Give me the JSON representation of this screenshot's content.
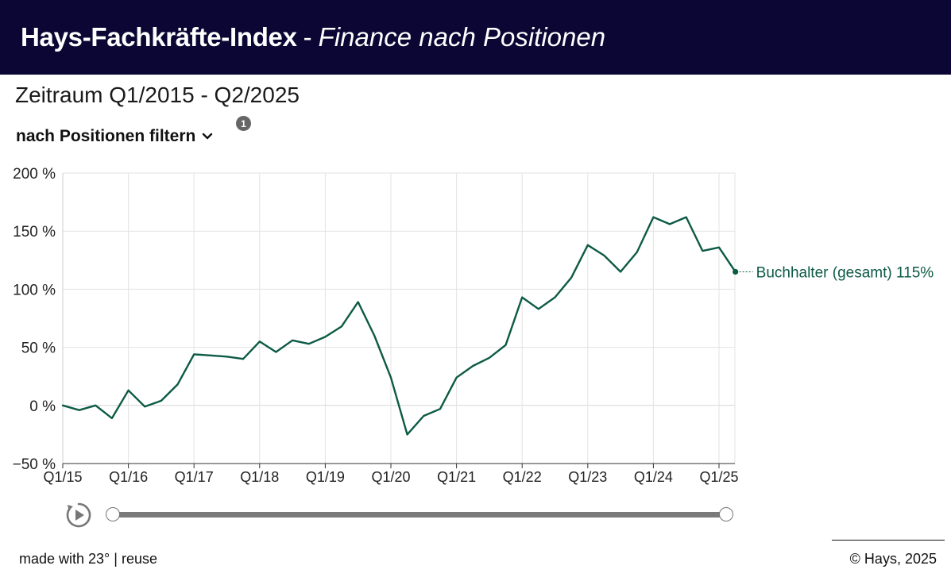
{
  "header": {
    "title_bold": "Hays-Fachkräfte-Index",
    "separator": "-",
    "title_italic": "Finance nach Positionen",
    "bg_color": "#0b0633"
  },
  "period_label": "Zeitraum Q1/2015 - Q2/2025",
  "filter": {
    "label": "nach Positionen filtern",
    "chevron_icon": "chevron-down-icon",
    "info_badge": "1"
  },
  "chart_data": {
    "type": "line",
    "title": "",
    "xlabel": "",
    "ylabel": "",
    "ylim": [
      -50,
      200
    ],
    "y_ticks": [
      "−50 %",
      "0 %",
      "50 %",
      "100 %",
      "150 %",
      "200 %"
    ],
    "y_tick_values": [
      -50,
      0,
      50,
      100,
      150,
      200
    ],
    "x_ticks": [
      "Q1/15",
      "Q1/16",
      "Q1/17",
      "Q1/18",
      "Q1/19",
      "Q1/20",
      "Q1/21",
      "Q1/22",
      "Q1/23",
      "Q1/24",
      "Q1/25"
    ],
    "grid": true,
    "line_color": "#0d5a45",
    "series": [
      {
        "name": "Buchhalter (gesamt)",
        "end_label": "Buchhalter (gesamt) 115%",
        "x": [
          "Q1/15",
          "Q2/15",
          "Q3/15",
          "Q4/15",
          "Q1/16",
          "Q2/16",
          "Q3/16",
          "Q4/16",
          "Q1/17",
          "Q2/17",
          "Q3/17",
          "Q4/17",
          "Q1/18",
          "Q2/18",
          "Q3/18",
          "Q4/18",
          "Q1/19",
          "Q2/19",
          "Q3/19",
          "Q4/19",
          "Q1/20",
          "Q2/20",
          "Q3/20",
          "Q4/20",
          "Q1/21",
          "Q2/21",
          "Q3/21",
          "Q4/21",
          "Q1/22",
          "Q2/22",
          "Q3/22",
          "Q4/22",
          "Q1/23",
          "Q2/23",
          "Q3/23",
          "Q4/23",
          "Q1/24",
          "Q2/24",
          "Q3/24",
          "Q4/24",
          "Q1/25",
          "Q2/25"
        ],
        "values": [
          0,
          -4,
          0,
          -11,
          13,
          -1,
          4,
          18,
          44,
          43,
          42,
          40,
          55,
          46,
          56,
          53,
          59,
          68,
          89,
          60,
          24,
          -25,
          -9,
          -3,
          24,
          34,
          41,
          52,
          93,
          83,
          93,
          110,
          138,
          129,
          115,
          132,
          162,
          156,
          162,
          133,
          136,
          115
        ]
      }
    ]
  },
  "player": {
    "play_icon": "replay-play-icon"
  },
  "footer": {
    "made_with": "made with 23°",
    "divider": "|",
    "reuse": "reuse",
    "copyright": "© Hays, 2025"
  }
}
